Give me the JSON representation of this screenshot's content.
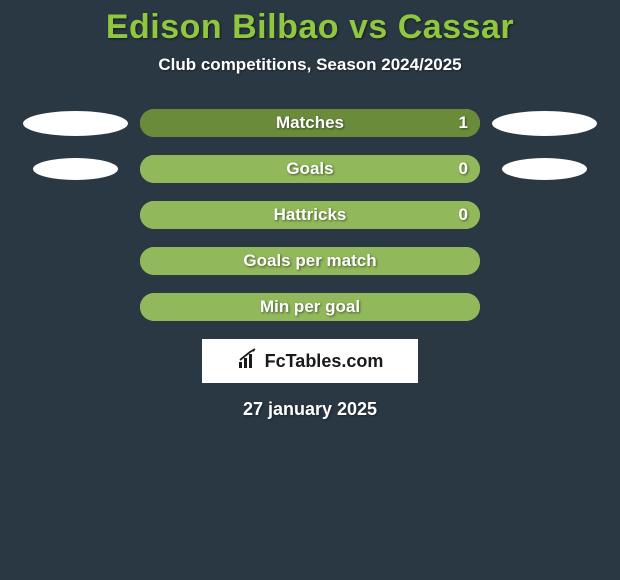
{
  "title": "Edison Bilbao vs Cassar",
  "subtitle": "Club competitions, Season 2024/2025",
  "date": "27 january 2025",
  "colors": {
    "background": "#2a3844",
    "accent": "#8fc73e",
    "bar_bg": "#91b85a",
    "bar_fill_dark": "#6a8c3a",
    "text": "#ffffff",
    "logo_bg": "#ffffff",
    "logo_text": "#1a1a1a"
  },
  "logo_text": "FcTables.com",
  "stats": [
    {
      "label": "Matches",
      "left_badge": true,
      "left_badge_small": false,
      "right_badge": true,
      "right_badge_small": false,
      "bar_bg_color": "#91b85a",
      "fill_color": "#6a8c3a",
      "fill_side": "right",
      "fill_width_pct": 100,
      "value_right": "1",
      "value_right_pos": 12
    },
    {
      "label": "Goals",
      "left_badge": true,
      "left_badge_small": true,
      "right_badge": true,
      "right_badge_small": true,
      "bar_bg_color": "#91b85a",
      "fill_color": "#91b85a",
      "fill_side": "right",
      "fill_width_pct": 100,
      "value_right": "0",
      "value_right_pos": 12
    },
    {
      "label": "Hattricks",
      "left_badge": false,
      "right_badge": false,
      "bar_bg_color": "#91b85a",
      "fill_color": "#91b85a",
      "fill_side": "right",
      "fill_width_pct": 100,
      "value_right": "0",
      "value_right_pos": 12
    },
    {
      "label": "Goals per match",
      "left_badge": false,
      "right_badge": false,
      "bar_bg_color": "#91b85a",
      "fill_color": "#91b85a",
      "fill_side": "right",
      "fill_width_pct": 100
    },
    {
      "label": "Min per goal",
      "left_badge": false,
      "right_badge": false,
      "bar_bg_color": "#91b85a",
      "fill_color": "#91b85a",
      "fill_side": "right",
      "fill_width_pct": 100
    }
  ]
}
